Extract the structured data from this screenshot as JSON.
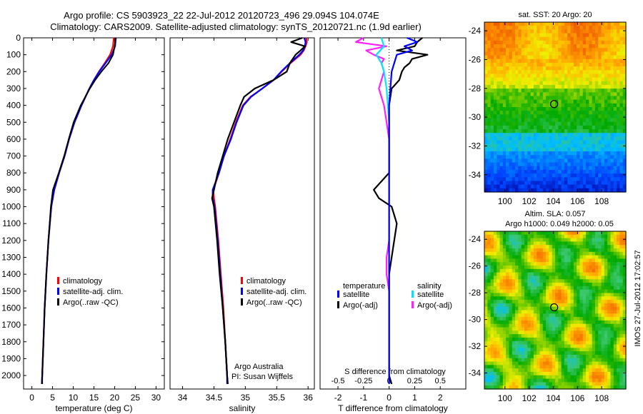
{
  "title_line1": "Argo profile: CS 5903923_22 22-Jul-2012 20120723_496 29.094S 104.074E",
  "title_line2": "Climatology: CARS2009. Satellite-adjusted climatology: synTS_20120721.nc (1.9d earlier)",
  "side_stamp": "IMOS 27-Jul-2012 17:02:57",
  "colors": {
    "clim": "#ff0000",
    "sat": "#0000ff",
    "argo": "#000000",
    "sal_sat": "#00e5ff",
    "sal_argo": "#ff20ff"
  },
  "chart_data": [
    {
      "type": "line",
      "id": "temperature",
      "xlabel": "temperature (deg C)",
      "ylabel": "",
      "xlim": [
        -2,
        32
      ],
      "ylim": [
        2080,
        0
      ],
      "xticks": [
        0,
        5,
        10,
        15,
        20,
        25,
        30
      ],
      "yticks": [
        0,
        100,
        200,
        300,
        400,
        500,
        600,
        700,
        800,
        900,
        1000,
        1100,
        1200,
        1300,
        1400,
        1500,
        1600,
        1700,
        1800,
        1900,
        2000
      ],
      "legend": [
        "climatology",
        "satellite-adj. clim.",
        "Argo(..raw -QC)"
      ],
      "legend_position": "bottom-right",
      "depth": [
        0,
        25,
        50,
        100,
        150,
        200,
        250,
        300,
        400,
        500,
        600,
        700,
        800,
        900,
        1000,
        1200,
        1400,
        1600,
        1800,
        2000,
        2050
      ],
      "series": [
        {
          "name": "climatology",
          "color": "red",
          "values": [
            19.8,
            19.7,
            19.6,
            18.9,
            17.6,
            16.2,
            15.0,
            13.9,
            12.0,
            10.3,
            9.0,
            7.9,
            6.6,
            5.4,
            4.7,
            4.0,
            3.5,
            3.1,
            2.8,
            2.5,
            2.4
          ]
        },
        {
          "name": "satellite-adj. clim.",
          "color": "blue",
          "values": [
            20.3,
            20.2,
            20.1,
            19.3,
            17.8,
            16.3,
            15.0,
            13.9,
            12.0,
            10.3,
            9.0,
            7.9,
            6.6,
            5.4,
            4.7,
            4.0,
            3.5,
            3.1,
            2.8,
            2.5,
            2.4
          ]
        },
        {
          "name": "Argo(..raw -QC)",
          "color": "black",
          "values": [
            20.2,
            20.1,
            20.0,
            19.6,
            18.5,
            16.8,
            15.3,
            14.0,
            11.8,
            10.1,
            8.9,
            7.8,
            6.5,
            5.1,
            4.6,
            4.0,
            3.5,
            3.1,
            2.8,
            2.5,
            2.5
          ]
        }
      ]
    },
    {
      "type": "line",
      "id": "salinity",
      "xlabel": "salinity",
      "xlim": [
        33.8,
        36.1
      ],
      "ylim": [
        2080,
        0
      ],
      "xticks": [
        34,
        34.5,
        35,
        35.5,
        36
      ],
      "xticklabels": [
        "34",
        "34.5",
        "35",
        "35.5",
        "36"
      ],
      "legend": [
        "climatology",
        "satellite-adj. clim.",
        "Argo(..raw -QC)"
      ],
      "legend_position": "bottom-right",
      "annotation": [
        "Argo Australia",
        "PI: Susan Wijffels"
      ],
      "depth": [
        0,
        25,
        50,
        75,
        100,
        150,
        200,
        250,
        300,
        350,
        400,
        500,
        600,
        700,
        800,
        900,
        950,
        1000,
        1200,
        1400,
        1600,
        1800,
        2000,
        2050
      ],
      "series": [
        {
          "name": "climatology",
          "color": "red",
          "values": [
            35.97,
            35.98,
            35.96,
            35.93,
            35.88,
            35.72,
            35.58,
            35.45,
            35.27,
            35.08,
            34.96,
            34.85,
            34.76,
            34.66,
            34.58,
            34.49,
            34.5,
            34.52,
            34.57,
            34.61,
            34.65,
            34.68,
            34.71,
            34.72
          ]
        },
        {
          "name": "satellite-adj. clim.",
          "color": "blue",
          "values": [
            35.94,
            35.96,
            35.95,
            35.92,
            35.86,
            35.71,
            35.57,
            35.45,
            35.27,
            35.09,
            34.97,
            34.86,
            34.77,
            34.66,
            34.58,
            34.48,
            34.48,
            34.51,
            34.56,
            34.6,
            34.64,
            34.68,
            34.71,
            34.71
          ]
        },
        {
          "name": "Argo(..raw -QC)",
          "color": "black",
          "values": [
            35.91,
            35.73,
            35.95,
            35.88,
            35.8,
            35.71,
            35.66,
            35.45,
            35.15,
            34.98,
            34.92,
            34.82,
            34.72,
            34.64,
            34.56,
            34.5,
            34.47,
            34.5,
            34.55,
            34.59,
            34.64,
            34.68,
            34.71,
            34.72
          ]
        }
      ]
    },
    {
      "type": "line",
      "id": "difference",
      "xlabel": "T difference from climatology",
      "top_axis_label": "S difference from climatology",
      "xlim": [
        -2.7,
        3.0
      ],
      "ylim": [
        2080,
        0
      ],
      "xticks": [
        -2,
        -1,
        0,
        1,
        2
      ],
      "top_xticks_pos": [
        -2,
        -1,
        0,
        1,
        2
      ],
      "top_xticklabels": [
        "-0.5",
        "-0.25",
        "0",
        "0.25",
        "0.5"
      ],
      "legend_titles": [
        "temperature",
        "salinity"
      ],
      "legend": [
        "satellite",
        "Argo(-adj)",
        "satellite",
        "Argo(-adj)"
      ],
      "legend_position": "bottom",
      "series": [
        {
          "name": "satellite",
          "group": "temperature",
          "color": "blue",
          "depth": [
            0,
            25,
            50,
            75,
            100,
            150,
            200,
            300,
            400,
            500,
            700,
            900,
            1100,
            1300,
            1500,
            1700,
            1900,
            2050
          ],
          "values": [
            0.7,
            1.1,
            0.6,
            0.9,
            0.3,
            0.2,
            0.1,
            0.05,
            0.0,
            0.0,
            0.0,
            0.0,
            0.0,
            0.0,
            0.0,
            0.0,
            0.0,
            0.0
          ]
        },
        {
          "name": "Argo(-adj)",
          "group": "temperature",
          "color": "black",
          "depth": [
            0,
            25,
            50,
            75,
            100,
            125,
            150,
            175,
            200,
            250,
            300,
            400,
            500,
            600,
            700,
            800,
            900,
            950,
            1000,
            1100,
            1200,
            1300,
            1400,
            1600,
            1800,
            2000,
            2050
          ],
          "values": [
            1.3,
            1.1,
            1.0,
            0.3,
            1.5,
            0.9,
            0.8,
            0.6,
            0.5,
            0.4,
            0.1,
            0.0,
            0.0,
            0.0,
            0.0,
            0.0,
            -0.6,
            -0.4,
            0.1,
            0.3,
            0.2,
            0.1,
            0.0,
            0.0,
            0.0,
            0.0,
            0.1
          ]
        },
        {
          "name": "satellite",
          "group": "salinity",
          "color": "cyan",
          "depth": [
            0,
            50,
            100,
            150,
            200,
            300,
            500,
            700,
            1000,
            1300,
            1600,
            1900,
            2050
          ],
          "values": [
            -0.3,
            -0.2,
            -0.5,
            -0.3,
            -0.2,
            -0.1,
            0.0,
            0.0,
            0.0,
            0.0,
            0.0,
            0.0,
            0.0
          ]
        },
        {
          "name": "Argo(-adj)",
          "group": "salinity",
          "color": "magenta",
          "depth": [
            0,
            25,
            50,
            75,
            100,
            125,
            150,
            200,
            250,
            300,
            350,
            400,
            500,
            600,
            700,
            900,
            1000,
            1200,
            1300,
            1400,
            1500,
            1600,
            1800,
            2000,
            2050
          ],
          "values": [
            -1.0,
            -1.3,
            -0.1,
            -0.9,
            -0.6,
            -0.2,
            -0.3,
            -0.2,
            -0.3,
            -0.4,
            -0.3,
            -0.2,
            -0.1,
            0.0,
            0.0,
            0.0,
            0.0,
            0.0,
            -0.1,
            -0.1,
            0.0,
            0.0,
            0.0,
            0.0,
            0.0
          ]
        }
      ]
    },
    {
      "type": "heatmap",
      "id": "sst_map",
      "title": "sat. SST: 20  Argo: 20",
      "xlim": [
        98.3,
        110
      ],
      "ylim": [
        -35.2,
        -23.4
      ],
      "xticks": [
        100,
        102,
        104,
        106,
        108
      ],
      "yticks": [
        -24,
        -26,
        -28,
        -30,
        -32,
        -34
      ],
      "marker": {
        "lon": 104.07,
        "lat": -29.09
      }
    },
    {
      "type": "heatmap",
      "id": "sla_map",
      "title_lines": [
        "Altim. SLA: 0.057",
        "Argo h1000: 0.049 h2000: 0.05"
      ],
      "xlim": [
        98.3,
        110
      ],
      "ylim": [
        -35.2,
        -23.4
      ],
      "xticks": [
        100,
        102,
        104,
        106,
        108
      ],
      "yticks": [
        -24,
        -26,
        -28,
        -30,
        -32,
        -34
      ],
      "marker": {
        "lon": 104.07,
        "lat": -29.09
      }
    }
  ]
}
